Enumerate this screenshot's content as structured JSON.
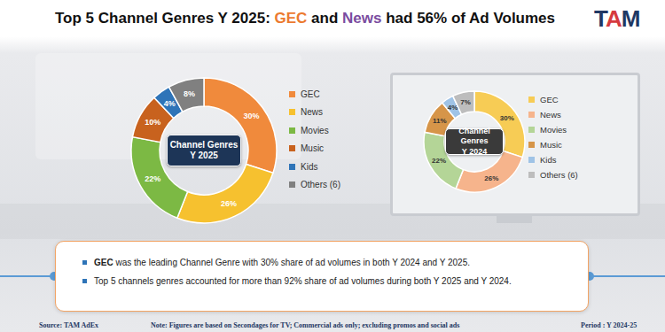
{
  "header": {
    "title": [
      {
        "text": "Top 5 Channel Genres Y 2025: ",
        "color": "#111111"
      },
      {
        "text": "GEC",
        "color": "#ec7a2f"
      },
      {
        "text": " and ",
        "color": "#111111"
      },
      {
        "text": "News",
        "color": "#7a4ca0"
      },
      {
        "text": " had 56% of Ad Volumes",
        "color": "#111111"
      }
    ],
    "logo": "TAM"
  },
  "chart_data": [
    {
      "type": "pie",
      "title": "Channel Genres",
      "subtitle": "Y 2025",
      "categories": [
        "GEC",
        "News",
        "Movies",
        "Music",
        "Kids",
        "Others (6)"
      ],
      "values": [
        30,
        26,
        22,
        10,
        4,
        8
      ],
      "value_labels": [
        "30%",
        "26%",
        "22%",
        "10%",
        "4%",
        "8%"
      ],
      "colors": [
        "#f08a3c",
        "#f6c12f",
        "#7cb944",
        "#c8621e",
        "#2e74b8",
        "#808080"
      ],
      "data_labels": true,
      "legend": "right"
    },
    {
      "type": "pie",
      "title": "Channel Genres",
      "subtitle": "Y 2024",
      "categories": [
        "GEC",
        "News",
        "Movies",
        "Music",
        "Kids",
        "Others (6)"
      ],
      "values": [
        30,
        26,
        22,
        11,
        4,
        7
      ],
      "value_labels": [
        "30%",
        "26%",
        "22%",
        "11%",
        "4%",
        "7%"
      ],
      "colors": [
        "#f7cc55",
        "#f6b48c",
        "#b4d597",
        "#d69549",
        "#9fc3e6",
        "#bdbdbd"
      ],
      "data_labels": true,
      "legend": "right"
    }
  ],
  "notes": [
    [
      {
        "text": "GEC",
        "bold": true
      },
      {
        "text": " was the leading Channel Genre with 30% share of ad volumes in both Y 2024 and Y 2025.",
        "bold": false
      }
    ],
    [
      {
        "text": "Top 5 channels genres accounted for more than 92% share of ad volumes during both Y 2025 and Y 2024.",
        "bold": false
      }
    ]
  ],
  "footer": {
    "source": "Source: TAM AdEx",
    "note": "Note: Figures are based on Secondages for TV; Commercial ads only; excluding promos and social ads",
    "period": "Period : Y 2024-25"
  }
}
